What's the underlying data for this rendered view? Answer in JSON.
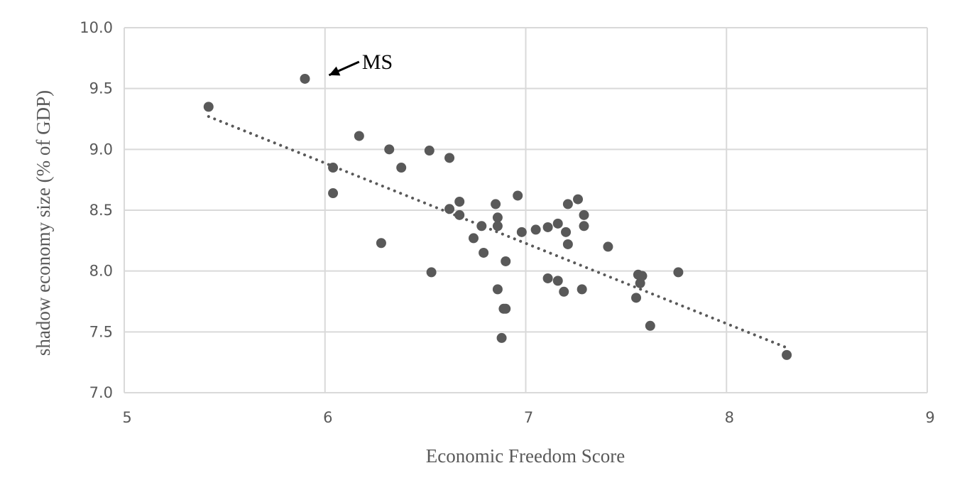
{
  "chart_data": {
    "type": "scatter",
    "xlabel": "Economic Freedom Score",
    "ylabel": "shadow economy size (% of GDP)",
    "xlim": [
      5,
      9
    ],
    "ylim": [
      7.0,
      10.0
    ],
    "x_ticks": [
      "5",
      "6",
      "7",
      "8",
      "9"
    ],
    "y_ticks": [
      "7.0",
      "7.5",
      "8.0",
      "8.5",
      "9.0",
      "9.5",
      "10.0"
    ],
    "grid": true,
    "legend": "none",
    "colors": {
      "points": "#595959",
      "grid": "#d9d9d9",
      "trend": "#595959",
      "text": "#595959"
    },
    "points": [
      {
        "x": 5.42,
        "y": 9.35
      },
      {
        "x": 5.9,
        "y": 9.58
      },
      {
        "x": 6.04,
        "y": 8.85
      },
      {
        "x": 6.04,
        "y": 8.64
      },
      {
        "x": 6.17,
        "y": 9.11
      },
      {
        "x": 6.28,
        "y": 8.23
      },
      {
        "x": 6.32,
        "y": 9.0
      },
      {
        "x": 6.38,
        "y": 8.85
      },
      {
        "x": 6.52,
        "y": 8.99
      },
      {
        "x": 6.53,
        "y": 7.99
      },
      {
        "x": 6.62,
        "y": 8.93
      },
      {
        "x": 6.62,
        "y": 8.51
      },
      {
        "x": 6.67,
        "y": 8.57
      },
      {
        "x": 6.67,
        "y": 8.46
      },
      {
        "x": 6.74,
        "y": 8.27
      },
      {
        "x": 6.78,
        "y": 8.37
      },
      {
        "x": 6.79,
        "y": 8.15
      },
      {
        "x": 6.85,
        "y": 8.55
      },
      {
        "x": 6.86,
        "y": 8.44
      },
      {
        "x": 6.86,
        "y": 8.37
      },
      {
        "x": 6.86,
        "y": 7.85
      },
      {
        "x": 6.88,
        "y": 7.45
      },
      {
        "x": 6.89,
        "y": 7.69
      },
      {
        "x": 6.9,
        "y": 7.69
      },
      {
        "x": 6.9,
        "y": 8.08
      },
      {
        "x": 6.96,
        "y": 8.62
      },
      {
        "x": 6.98,
        "y": 8.32
      },
      {
        "x": 7.05,
        "y": 8.34
      },
      {
        "x": 7.11,
        "y": 8.36
      },
      {
        "x": 7.11,
        "y": 7.94
      },
      {
        "x": 7.16,
        "y": 8.39
      },
      {
        "x": 7.16,
        "y": 7.92
      },
      {
        "x": 7.19,
        "y": 7.83
      },
      {
        "x": 7.2,
        "y": 8.32
      },
      {
        "x": 7.21,
        "y": 8.55
      },
      {
        "x": 7.21,
        "y": 8.22
      },
      {
        "x": 7.26,
        "y": 8.59
      },
      {
        "x": 7.28,
        "y": 7.85
      },
      {
        "x": 7.29,
        "y": 8.46
      },
      {
        "x": 7.29,
        "y": 8.37
      },
      {
        "x": 7.41,
        "y": 8.2
      },
      {
        "x": 7.55,
        "y": 7.78
      },
      {
        "x": 7.56,
        "y": 7.97
      },
      {
        "x": 7.57,
        "y": 7.9
      },
      {
        "x": 7.58,
        "y": 7.96
      },
      {
        "x": 7.62,
        "y": 7.55
      },
      {
        "x": 7.76,
        "y": 7.99
      },
      {
        "x": 8.3,
        "y": 7.31
      }
    ],
    "trendline": {
      "style": "dotted",
      "x": [
        5.42,
        8.3
      ],
      "y": [
        9.27,
        7.37
      ]
    },
    "annotations": [
      {
        "text": "MS",
        "point": {
          "x": 5.9,
          "y": 9.58
        },
        "arrow_tip": {
          "x": 6.02,
          "y": 9.61
        },
        "arrow_tail": {
          "x": 6.17,
          "y": 9.72
        }
      }
    ]
  }
}
